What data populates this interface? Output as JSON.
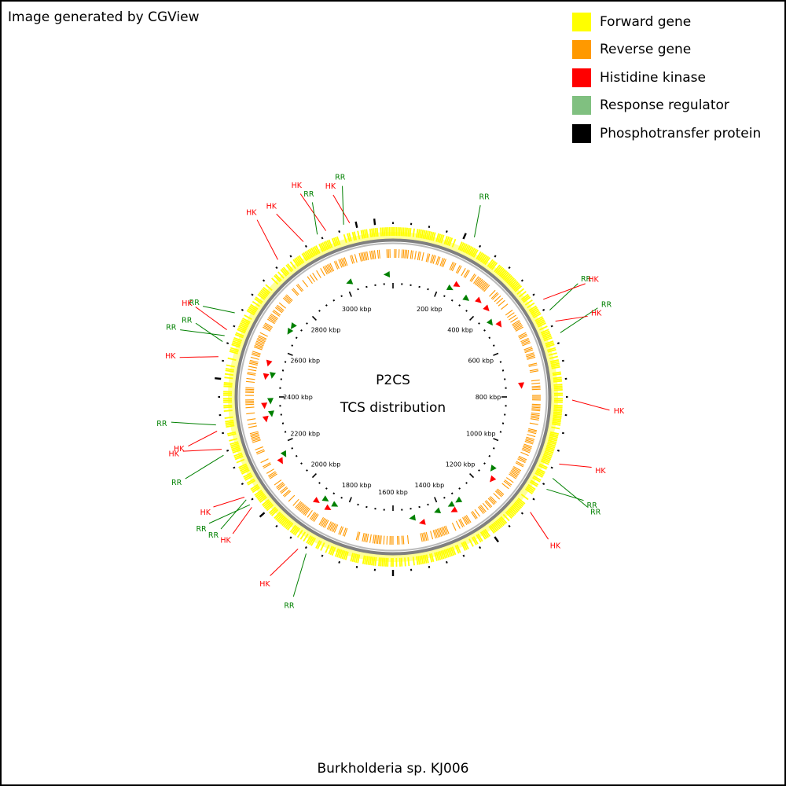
{
  "credit": "Image generated by CGView",
  "caption": "Burkholderia sp. KJ006",
  "map_title": "P2CS",
  "map_subtitle": "TCS distribution",
  "colors": {
    "forward": "#ffff00",
    "reverse": "#ff9900",
    "hk": "#ff0000",
    "rr_legend": "#80c080",
    "rr_mark": "#008000",
    "phosphotransfer": "#000000",
    "backbone": "#808080"
  },
  "legend": [
    {
      "label": "Forward gene",
      "color": "#ffff00"
    },
    {
      "label": "Reverse gene",
      "color": "#ff9900"
    },
    {
      "label": "Histidine kinase",
      "color": "#ff0000"
    },
    {
      "label": "Response regulator",
      "color": "#80c080"
    },
    {
      "label": "Phosphotransfer protein",
      "color": "#000000"
    }
  ],
  "ruler": {
    "unit": "kbp",
    "major_ticks": [
      200,
      400,
      600,
      800,
      1000,
      1200,
      1400,
      1600,
      1800,
      2000,
      2200,
      2400,
      2600,
      2800,
      3000
    ],
    "tick_labels": [
      "200 kbp",
      "400 kbp",
      "600 kbp",
      "800 kbp",
      "1000 kbp",
      "1200 kbp",
      "1400 kbp",
      "1600 kbp",
      "1800 kbp",
      "2000 kbp",
      "2200 kbp",
      "2400 kbp",
      "2600 kbp",
      "2800 kbp",
      "3000 kbp"
    ]
  },
  "features": [
    {
      "label": "HK",
      "type": "HK",
      "angle": -14
    },
    {
      "label": "RR",
      "type": "RR",
      "angle": -16
    },
    {
      "label": "HK",
      "type": "HK",
      "angle": -22
    },
    {
      "label": "RR",
      "type": "RR",
      "angle": -25
    },
    {
      "label": "HK",
      "type": "HK",
      "angle": -30
    },
    {
      "label": "HK",
      "type": "HK",
      "angle": -40
    },
    {
      "label": "RR",
      "type": "RR",
      "angle": -62
    },
    {
      "label": "HK",
      "type": "HK",
      "angle": -68
    },
    {
      "label": "RR",
      "type": "RR",
      "angle": -70
    },
    {
      "label": "RR",
      "type": "RR",
      "angle": -72
    },
    {
      "label": "HK",
      "type": "HK",
      "angle": -77
    },
    {
      "label": "RR",
      "type": "RR",
      "angle": -99
    },
    {
      "label": "HK",
      "type": "HK",
      "angle": -101
    },
    {
      "label": "HK",
      "type": "HK",
      "angle": -107
    },
    {
      "label": "RR",
      "type": "RR",
      "angle": -109
    },
    {
      "label": "HK",
      "type": "HK",
      "angle": -124
    },
    {
      "label": "RR",
      "type": "RR",
      "angle": -125
    },
    {
      "label": "RR",
      "type": "RR",
      "angle": -127
    },
    {
      "label": "HK",
      "type": "HK",
      "angle": -128
    },
    {
      "label": "HK",
      "type": "HK",
      "angle": -148
    },
    {
      "label": "RR",
      "type": "RR",
      "angle": -151
    },
    {
      "label": "HK",
      "type": "HK",
      "angle": 130
    },
    {
      "label": "RR",
      "type": "RR",
      "angle": 121
    },
    {
      "label": "RR",
      "type": "RR",
      "angle": 117
    },
    {
      "label": "HK",
      "type": "HK",
      "angle": 112
    },
    {
      "label": "HK",
      "type": "HK",
      "angle": 91
    },
    {
      "label": "RR",
      "type": "RR",
      "angle": 69
    },
    {
      "label": "HK",
      "type": "HK",
      "angle": 65
    },
    {
      "label": "RR",
      "type": "RR",
      "angle": 61
    },
    {
      "label": "HK",
      "type": "HK",
      "angle": 57
    },
    {
      "label": "RR",
      "type": "RR",
      "angle": 27
    }
  ],
  "inner_marks": [
    {
      "type": "HK",
      "angle": 42
    },
    {
      "type": "RR",
      "angle": 37
    },
    {
      "type": "RR",
      "angle": 28
    },
    {
      "type": "HK",
      "angle": 30
    },
    {
      "type": "RR",
      "angle": -3
    },
    {
      "type": "HK",
      "angle": 47
    },
    {
      "type": "RR",
      "angle": 53
    },
    {
      "type": "HK",
      "angle": 56
    },
    {
      "type": "HK",
      "angle": 85
    },
    {
      "type": "RR",
      "angle": 126
    },
    {
      "type": "HK",
      "angle": 130
    },
    {
      "type": "RR",
      "angle": 148
    },
    {
      "type": "HK",
      "angle": 152
    },
    {
      "type": "RR",
      "angle": 152
    },
    {
      "type": "RR",
      "angle": 159
    },
    {
      "type": "HK",
      "angle": 167
    },
    {
      "type": "RR",
      "angle": 171
    },
    {
      "type": "HK",
      "angle": -144
    },
    {
      "type": "RR",
      "angle": -147
    },
    {
      "type": "HK",
      "angle": -150
    },
    {
      "type": "RR",
      "angle": -152
    },
    {
      "type": "RR",
      "angle": -118
    },
    {
      "type": "HK",
      "angle": -120
    },
    {
      "type": "HK",
      "angle": -100
    },
    {
      "type": "RR",
      "angle": -98
    },
    {
      "type": "HK",
      "angle": -94
    },
    {
      "type": "RR",
      "angle": -92
    },
    {
      "type": "HK",
      "angle": -81
    },
    {
      "type": "RR",
      "angle": -80
    },
    {
      "type": "HK",
      "angle": -75
    },
    {
      "type": "RR",
      "angle": -58
    },
    {
      "type": "RR",
      "angle": -55
    },
    {
      "type": "RR",
      "angle": -21
    }
  ],
  "phosphotransfer_positions_deg": [
    -131,
    -86,
    -11,
    -4,
    22,
    63,
    93,
    142,
    178
  ]
}
